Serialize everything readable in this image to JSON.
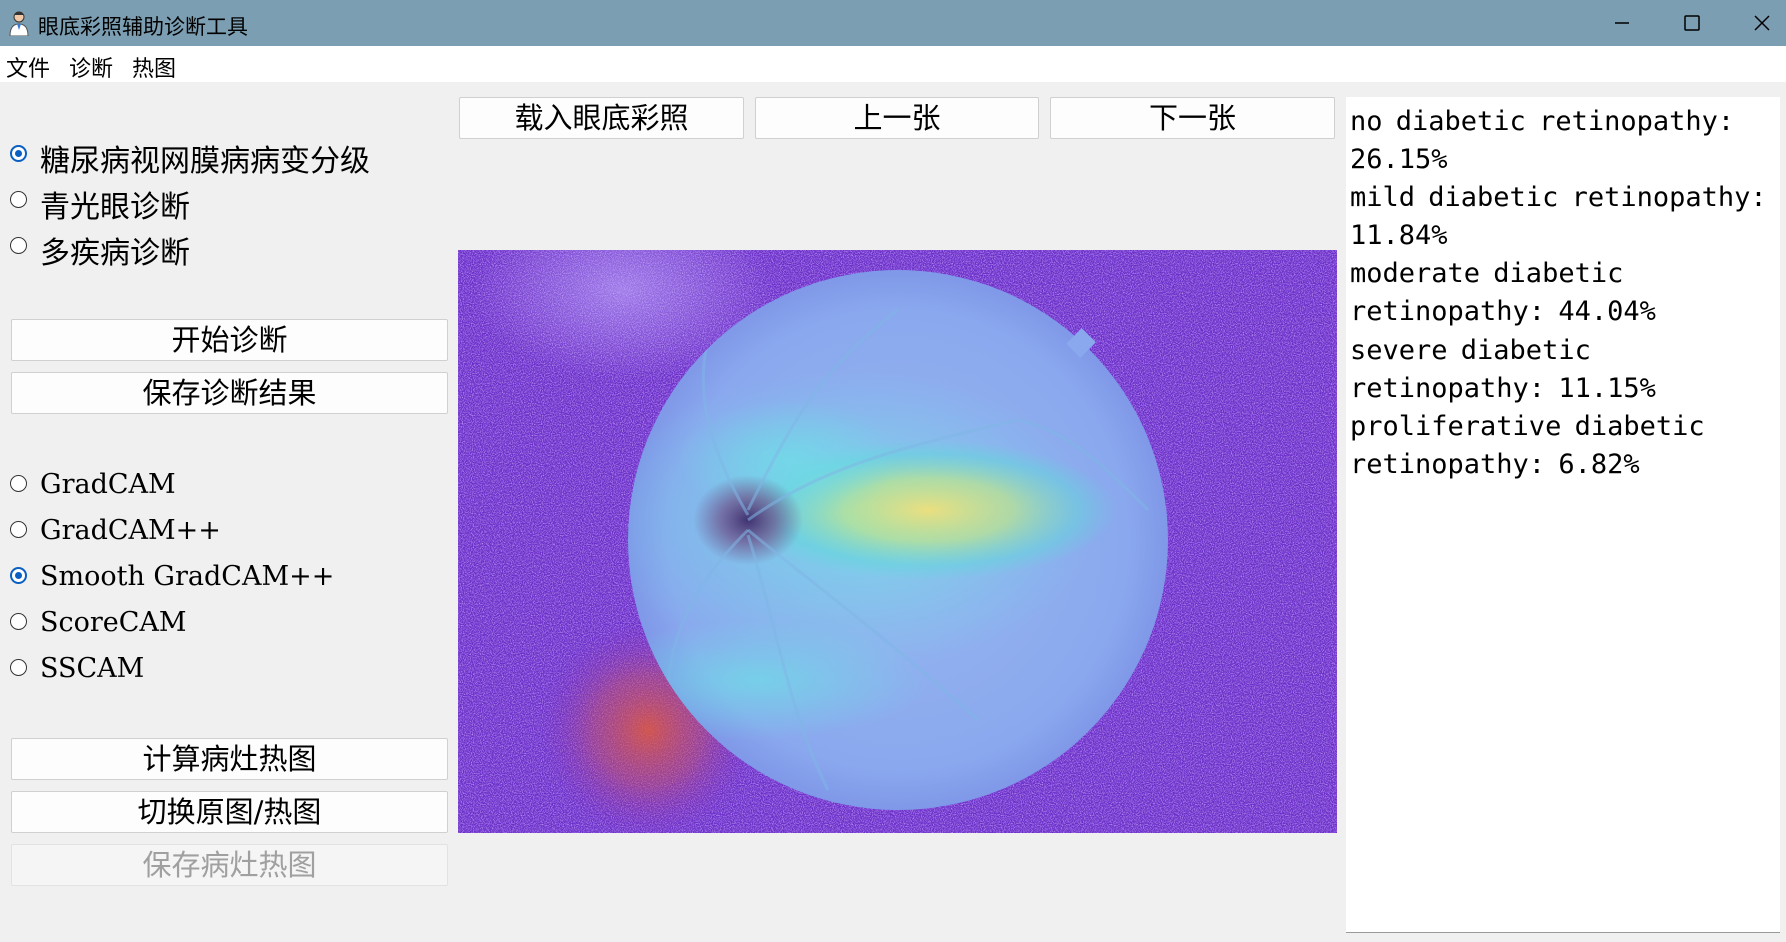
{
  "window": {
    "title": "眼底彩照辅助诊断工具",
    "controls": [
      "minimize-icon",
      "maximize-icon",
      "close-icon"
    ]
  },
  "menu": [
    "文件",
    "诊断",
    "热图"
  ],
  "diagnosis_modes": {
    "selected": "糖尿病视网膜病病变分级",
    "options": [
      "糖尿病视网膜病病变分级",
      "青光眼诊断",
      "多疾病诊断"
    ]
  },
  "buttons": {
    "start": "开始诊断",
    "save_result": "保存诊断结果",
    "load_image": "载入眼底彩照",
    "previous": "上一张",
    "next": "下一张",
    "compute_heatmap": "计算病灶热图",
    "toggle_view": "切换原图/热图",
    "save_heatmap": "保存病灶热图"
  },
  "heatmap_methods": {
    "selected": "Smooth GradCAM++",
    "options": [
      "GradCAM",
      "GradCAM++",
      "Smooth GradCAM++",
      "ScoreCAM",
      "SSCAM"
    ]
  },
  "results": {
    "text": "no diabetic retinopathy: 26.15%\nmild diabetic retinopathy: 11.84%\nmoderate diabetic retinopathy: 44.04%\nsevere diabetic retinopathy: 11.15%\nproliferative diabetic retinopathy: 6.82%"
  },
  "colors": {
    "titlebar": "#7b9eb2",
    "radio_accent": "#0a5fc2",
    "heatmap_background": "#6a2ec8"
  }
}
